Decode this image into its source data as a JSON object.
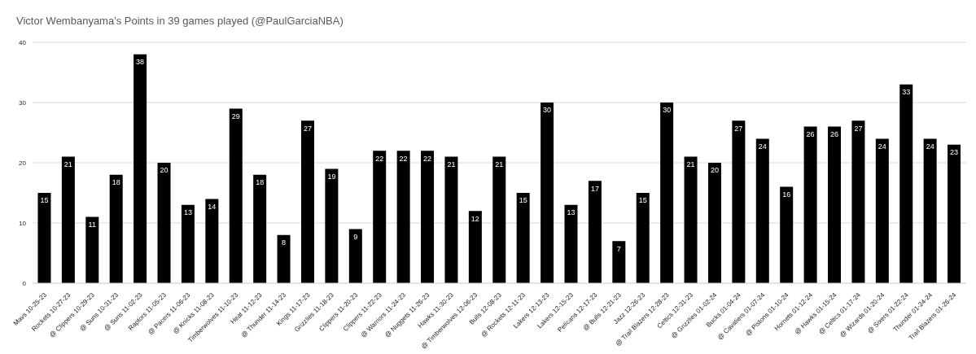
{
  "chart_data": {
    "type": "bar",
    "title": "Victor Wembanyama's Points in 39 games played (@PaulGarciaNBA)",
    "categories": [
      "Mavs 10-25-23",
      "Rockets 10-27-23",
      "@ Clippers 10-29-23",
      "@ Suns 10-31-23",
      "@ Suns 11-02-23",
      "Raptors 11-05-23",
      "@ Pacers 11-06-23",
      "@ Knicks 11-08-23",
      "Timberwolves 11-10-23",
      "Heat 11-12-23",
      "@ Thunder 11-14-23",
      "Kings 11-17-23",
      "Grizzlies 11-18-23",
      "Clippers 11-20-23",
      "Clippers 11-22-23",
      "@ Warriors 11-24-23",
      "@ Nuggets 11-26-23",
      "Hawks 11-30-23",
      "@ Timberwolves 12-06-23",
      "Bulls 12-08-23",
      "@ Rockets 12-11-23",
      "Lakers 12-13-23",
      "Lakers 12-15-23",
      "Pelicans 12-17-23",
      "@ Bulls 12-21-23",
      "Jazz 12-26-23",
      "@ Trail Blazers 12-28-23",
      "Celtics 12-31-23",
      "@ Grizzlies 01-02-24",
      "Bucks 01-04-24",
      "@ Cavaliers 01-07-24",
      "@ Pistons 01-10-24",
      "Hornets 01-12-24",
      "@ Hawks 01-15-24",
      "@ Celtics 01-17-24",
      "@ Wizards 01-20-24",
      "@ Sixers 01-22-24",
      "Thunder 01-24-24",
      "Trail Blazers 01-26-24"
    ],
    "values": [
      15,
      21,
      11,
      18,
      38,
      20,
      13,
      14,
      29,
      18,
      8,
      27,
      19,
      9,
      22,
      22,
      22,
      21,
      12,
      21,
      15,
      30,
      13,
      17,
      7,
      15,
      30,
      21,
      20,
      27,
      24,
      16,
      26,
      26,
      27,
      24,
      33,
      24,
      23
    ],
    "color": "#000000",
    "ylim": [
      0,
      40
    ],
    "yticks": [
      0,
      10,
      20,
      30,
      40
    ],
    "grid": "y",
    "data_labels": true
  }
}
